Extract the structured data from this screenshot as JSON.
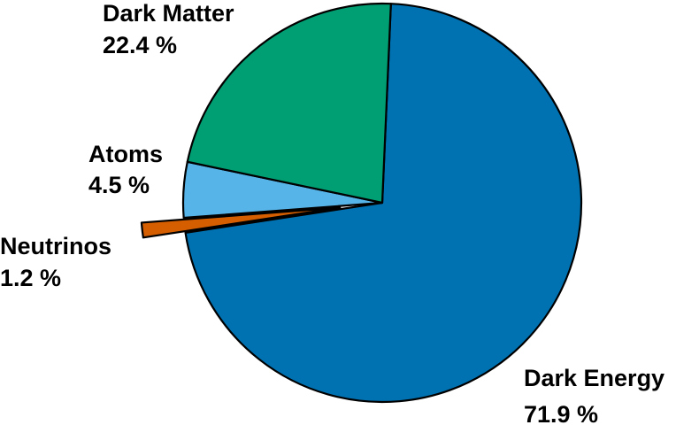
{
  "chart_data": {
    "type": "pie",
    "start_angle_deg": 87.5,
    "direction": "clockwise",
    "slices": [
      {
        "label": "Dark Energy",
        "value": 71.9,
        "value_label": "71.9 %",
        "color": "#0072b2"
      },
      {
        "label": "Neutrinos",
        "value": 1.2,
        "value_label": "1.2 %",
        "color": "#d55e00",
        "exploded": true
      },
      {
        "label": "Atoms",
        "value": 4.5,
        "value_label": "4.5 %",
        "color": "#56b4e9"
      },
      {
        "label": "Dark Matter",
        "value": 22.4,
        "value_label": "22.4 %",
        "color": "#009e73"
      }
    ]
  }
}
